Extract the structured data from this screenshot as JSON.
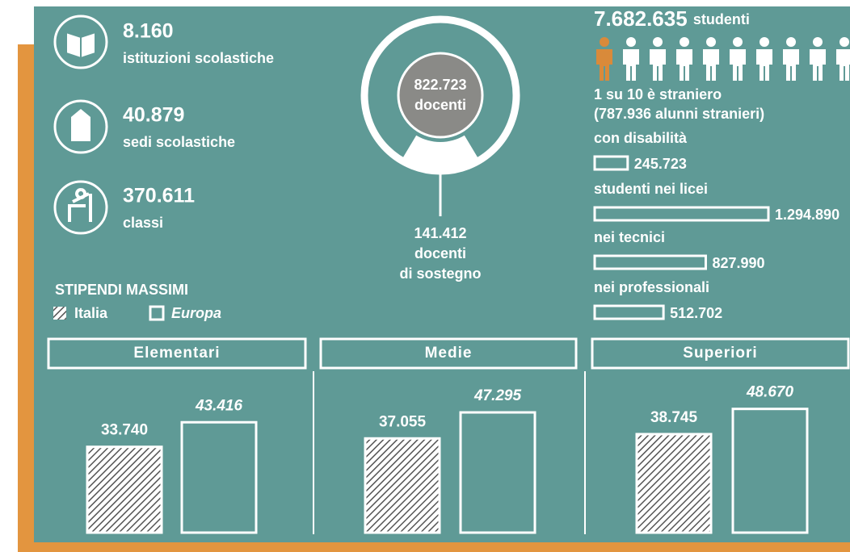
{
  "stats": [
    {
      "value": "8.160",
      "label": "istituzioni scolastiche"
    },
    {
      "value": "40.879",
      "label": "sedi scolastiche"
    },
    {
      "value": "370.611",
      "label": "classi"
    }
  ],
  "teachers": {
    "total": 822723,
    "total_label": "822.723",
    "total_text": "docenti",
    "support": 141412,
    "support_label": "141.412",
    "support_lines": [
      "docenti",
      "di sostegno"
    ]
  },
  "students": {
    "total": "7.682.635",
    "total_text": "studenti",
    "foreign_lines": [
      "1 su 10 è straniero",
      "(787.936 alunni stranieri)"
    ],
    "groups": [
      {
        "name": "con disabilità",
        "value": 245723,
        "value_label": "245.723"
      },
      {
        "name": "studenti nei licei",
        "value": 1294890,
        "value_label": "1.294.890"
      },
      {
        "name": "nei tecnici",
        "value": 827990,
        "value_label": "827.990"
      },
      {
        "name": "nei professionali",
        "value": 512702,
        "value_label": "512.702"
      }
    ]
  },
  "salaries": {
    "title": "STIPENDI MASSIMI",
    "legend": [
      "Italia",
      "Europa"
    ],
    "panels": [
      {
        "name": "Elementari",
        "values": [
          33740,
          43416
        ],
        "value_labels": [
          "33.740",
          "43.416"
        ]
      },
      {
        "name": "Medie",
        "values": [
          37055,
          47295
        ],
        "value_labels": [
          "37.055",
          "47.295"
        ]
      },
      {
        "name": "Superiori",
        "values": [
          38745,
          48670
        ],
        "value_labels": [
          "38.745",
          "48.670"
        ]
      }
    ]
  }
}
